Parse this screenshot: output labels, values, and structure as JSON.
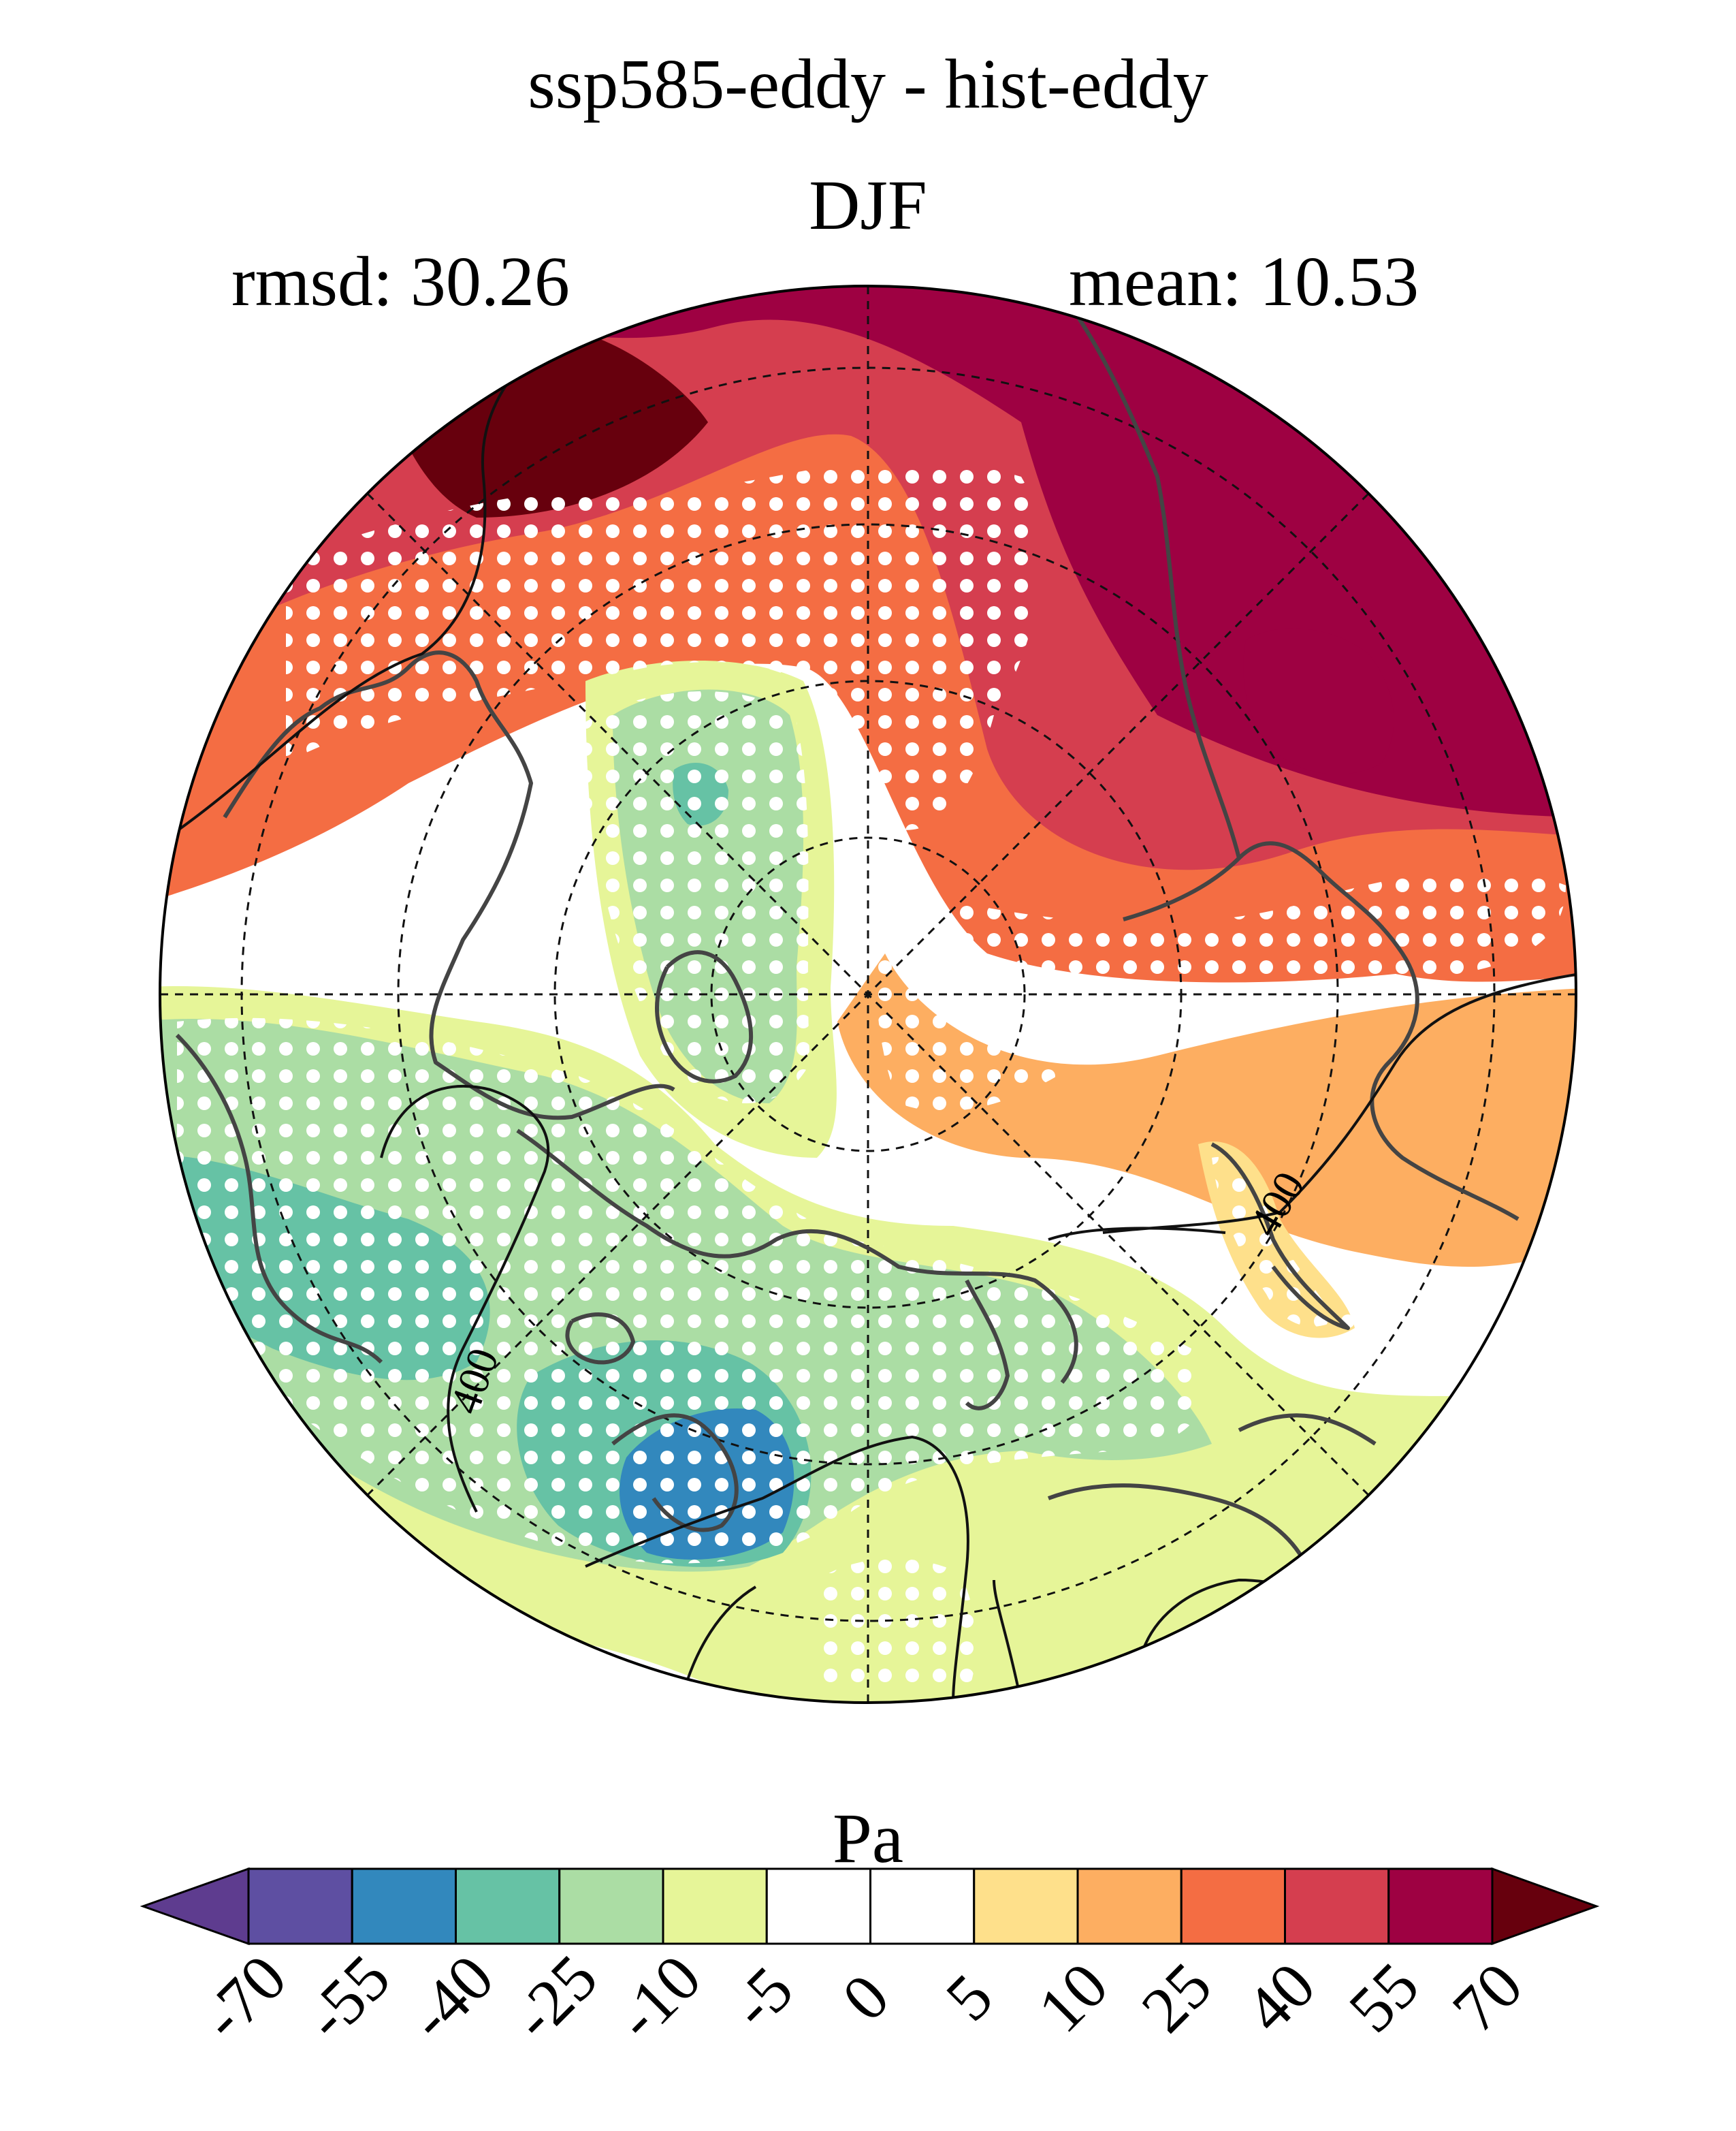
{
  "title": "ssp585-eddy - hist-eddy",
  "season": "DJF",
  "stats": {
    "rmsd": "rmsd: 30.26",
    "mean": "mean: 10.53"
  },
  "units": "Pa",
  "contour_label": "400",
  "colorbar": {
    "ticks": [
      "-70",
      "-55",
      "-40",
      "-25",
      "-10",
      "-5",
      "0",
      "5",
      "10",
      "25",
      "40",
      "55",
      "70"
    ],
    "low_extend_color": "#5e3c8f",
    "high_extend_color": "#67000d",
    "colors": [
      "#5e4fa2",
      "#3288bd",
      "#66c2a5",
      "#abdda4",
      "#e6f598",
      "#ffffff",
      "#ffffff",
      "#fee08b",
      "#fdae61",
      "#f46d43",
      "#d53e4f",
      "#9e0142"
    ]
  },
  "map_colors": {
    "extreme_pos": "#67000d",
    "strong_pos": "#9e0142",
    "high_pos": "#d53e4f",
    "mid_pos": "#f46d43",
    "low_pos": "#fdae61",
    "weak_pos": "#fee08b",
    "neutral": "#ffffff",
    "weak_neg": "#e6f598",
    "low_neg": "#abdda4",
    "mid_neg": "#66c2a5",
    "high_neg": "#3288bd",
    "coastline": "#444444",
    "contour": "#111111",
    "stipple": "#ffffff"
  }
}
